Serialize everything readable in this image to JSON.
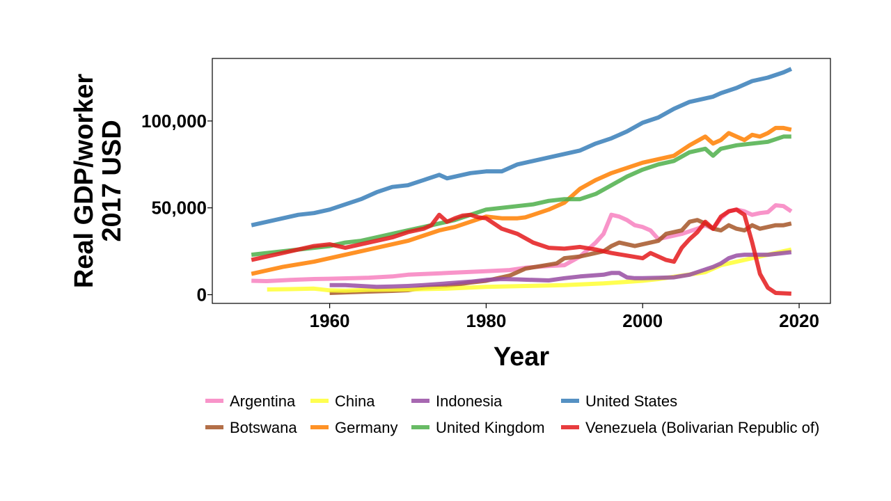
{
  "chart_data": {
    "type": "line",
    "xlabel": "Year",
    "ylabel": "Real GDP/worker\n2017 USD",
    "xlim": [
      1945,
      2024
    ],
    "ylim": [
      -5000,
      136000
    ],
    "xticks": [
      1960,
      1980,
      2000,
      2020
    ],
    "yticks": [
      0,
      50000,
      100000
    ],
    "ytick_labels": [
      "0",
      "50,000",
      "100,000"
    ],
    "grid": false,
    "legend_position": "bottom",
    "series": [
      {
        "name": "Argentina",
        "color": "#F781BF",
        "x": [
          1950,
          1952,
          1955,
          1958,
          1960,
          1963,
          1965,
          1968,
          1970,
          1975,
          1980,
          1983,
          1985,
          1988,
          1990,
          1992,
          1994,
          1995,
          1996,
          1997,
          1998,
          1999,
          2000,
          2001,
          2002,
          2003,
          2005,
          2007,
          2008,
          2009,
          2010,
          2011,
          2012,
          2013,
          2014,
          2015,
          2016,
          2017,
          2018,
          2019
        ],
        "y": [
          8000,
          7800,
          8500,
          9000,
          9200,
          9500,
          9800,
          10500,
          11500,
          12500,
          13500,
          14200,
          15500,
          16500,
          17000,
          22000,
          30000,
          35000,
          46000,
          45000,
          43000,
          40000,
          39000,
          37000,
          32000,
          33000,
          35000,
          38000,
          40000,
          38000,
          44000,
          48000,
          49000,
          48000,
          46000,
          47000,
          47500,
          51500,
          51000,
          48000
        ]
      },
      {
        "name": "Botswana",
        "color": "#A65628",
        "x": [
          1960,
          1963,
          1965,
          1968,
          1970,
          1972,
          1975,
          1978,
          1980,
          1982,
          1983,
          1984,
          1985,
          1987,
          1989,
          1990,
          1992,
          1994,
          1995,
          1996,
          1997,
          1998,
          1999,
          2000,
          2001,
          2002,
          2003,
          2004,
          2005,
          2006,
          2007,
          2008,
          2009,
          2010,
          2011,
          2012,
          2013,
          2014,
          2015,
          2016,
          2017,
          2018,
          2019
        ],
        "y": [
          1000,
          1500,
          1800,
          2200,
          2600,
          4000,
          5000,
          7000,
          8000,
          10000,
          11000,
          13000,
          15000,
          16500,
          18000,
          21000,
          22000,
          24000,
          25000,
          28000,
          30000,
          29000,
          28000,
          29000,
          30000,
          31000,
          35000,
          36000,
          37000,
          42000,
          43000,
          41000,
          38000,
          37000,
          40000,
          38000,
          37000,
          40000,
          38000,
          39000,
          40000,
          40000,
          41000
        ]
      },
      {
        "name": "China",
        "color": "#FFFF33",
        "x": [
          1952,
          1955,
          1958,
          1960,
          1962,
          1965,
          1970,
          1975,
          1980,
          1985,
          1990,
          1995,
          2000,
          2002,
          2005,
          2008,
          2010,
          2012,
          2015,
          2019
        ],
        "y": [
          3000,
          3200,
          3500,
          2500,
          2300,
          2800,
          3000,
          3500,
          4500,
          5000,
          5500,
          6500,
          8000,
          9000,
          11000,
          13000,
          17000,
          19000,
          22000,
          26000
        ]
      },
      {
        "name": "Germany",
        "color": "#FF7F00",
        "x": [
          1950,
          1952,
          1954,
          1956,
          1958,
          1960,
          1962,
          1964,
          1966,
          1968,
          1970,
          1972,
          1974,
          1976,
          1978,
          1980,
          1982,
          1984,
          1985,
          1986,
          1988,
          1990,
          1991,
          1992,
          1994,
          1996,
          1998,
          2000,
          2002,
          2004,
          2006,
          2008,
          2009,
          2010,
          2011,
          2012,
          2013,
          2014,
          2015,
          2016,
          2017,
          2018,
          2019
        ],
        "y": [
          12000,
          14000,
          16000,
          17500,
          19000,
          21000,
          23000,
          25000,
          27000,
          29000,
          31000,
          34000,
          37000,
          39000,
          42000,
          45000,
          44000,
          44000,
          44500,
          46000,
          49000,
          53000,
          57000,
          61000,
          66000,
          70000,
          73000,
          76000,
          78000,
          80000,
          86000,
          91000,
          87000,
          89000,
          93000,
          91000,
          89000,
          92000,
          91000,
          93000,
          96000,
          96000,
          95000
        ]
      },
      {
        "name": "Indonesia",
        "color": "#984EA3",
        "x": [
          1960,
          1962,
          1964,
          1966,
          1968,
          1970,
          1972,
          1975,
          1978,
          1980,
          1982,
          1984,
          1986,
          1988,
          1990,
          1992,
          1995,
          1996,
          1997,
          1998,
          1999,
          2000,
          2002,
          2004,
          2006,
          2008,
          2009,
          2010,
          2011,
          2012,
          2013,
          2014,
          2015,
          2016,
          2017,
          2018,
          2019
        ],
        "y": [
          5500,
          5500,
          5000,
          4500,
          4700,
          5000,
          5500,
          6500,
          7500,
          8500,
          9000,
          8800,
          8500,
          8200,
          9500,
          10500,
          11500,
          12500,
          12500,
          10000,
          9500,
          9500,
          9700,
          10000,
          11500,
          14500,
          16000,
          18000,
          21000,
          22500,
          23000,
          23000,
          23000,
          23000,
          23500,
          24000,
          24500
        ]
      },
      {
        "name": "United Kingdom",
        "color": "#4DAF4A",
        "x": [
          1950,
          1952,
          1954,
          1956,
          1958,
          1960,
          1962,
          1964,
          1966,
          1968,
          1970,
          1972,
          1974,
          1976,
          1978,
          1980,
          1982,
          1984,
          1986,
          1988,
          1990,
          1992,
          1994,
          1996,
          1998,
          2000,
          2002,
          2004,
          2006,
          2008,
          2009,
          2010,
          2012,
          2014,
          2016,
          2018,
          2019
        ],
        "y": [
          23000,
          24000,
          25000,
          26000,
          27000,
          28000,
          30000,
          31000,
          33000,
          35000,
          37000,
          39000,
          41000,
          43000,
          46000,
          49000,
          50000,
          51000,
          52000,
          54000,
          55000,
          55000,
          58000,
          63000,
          68000,
          72000,
          75000,
          77000,
          82000,
          84000,
          80000,
          84000,
          86000,
          87000,
          88000,
          91000,
          91000
        ]
      },
      {
        "name": "United States",
        "color": "#377EB8",
        "x": [
          1950,
          1952,
          1954,
          1956,
          1958,
          1960,
          1962,
          1964,
          1966,
          1968,
          1970,
          1972,
          1974,
          1975,
          1976,
          1978,
          1980,
          1982,
          1984,
          1986,
          1988,
          1990,
          1992,
          1994,
          1996,
          1998,
          2000,
          2002,
          2004,
          2006,
          2008,
          2009,
          2010,
          2012,
          2014,
          2016,
          2018,
          2019
        ],
        "y": [
          40000,
          42000,
          44000,
          46000,
          47000,
          49000,
          52000,
          55000,
          59000,
          62000,
          63000,
          66000,
          69000,
          67000,
          68000,
          70000,
          71000,
          71000,
          75000,
          77000,
          79000,
          81000,
          83000,
          87000,
          90000,
          94000,
          99000,
          102000,
          107000,
          111000,
          113000,
          114000,
          116000,
          119000,
          123000,
          125000,
          128000,
          130000
        ]
      },
      {
        "name": "Venezuela (Bolivarian Republic of)",
        "color": "#E41A1C",
        "x": [
          1950,
          1952,
          1954,
          1956,
          1958,
          1960,
          1962,
          1964,
          1966,
          1968,
          1970,
          1972,
          1973,
          1974,
          1975,
          1976,
          1977,
          1978,
          1979,
          1980,
          1982,
          1984,
          1986,
          1988,
          1990,
          1992,
          1994,
          1996,
          1998,
          2000,
          2001,
          2002,
          2003,
          2004,
          2005,
          2006,
          2007,
          2008,
          2009,
          2010,
          2011,
          2012,
          2013,
          2014,
          2015,
          2016,
          2017,
          2018,
          2019
        ],
        "y": [
          20000,
          22000,
          24000,
          26000,
          28000,
          29000,
          27000,
          29000,
          31000,
          33000,
          36000,
          38000,
          40000,
          46000,
          42000,
          44000,
          45500,
          46000,
          44500,
          44000,
          38000,
          35000,
          30000,
          27000,
          26500,
          27500,
          26000,
          24000,
          22500,
          21000,
          24000,
          22000,
          20000,
          19000,
          27000,
          32000,
          36000,
          42000,
          38000,
          45000,
          48000,
          49000,
          46000,
          30000,
          12000,
          4000,
          1000,
          800,
          600
        ]
      }
    ]
  }
}
